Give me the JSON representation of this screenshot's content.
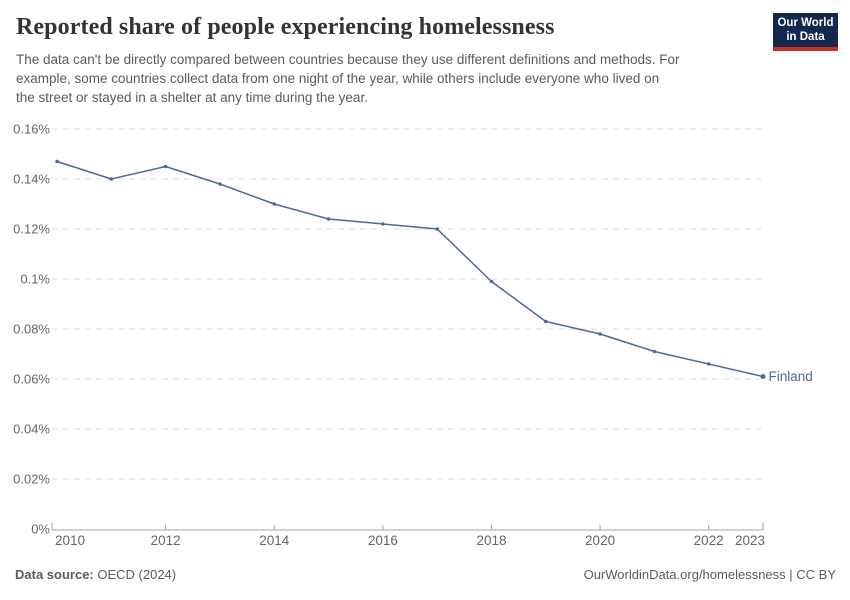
{
  "header": {
    "title": "Reported share of people experiencing homelessness",
    "subtitle": "The data can't be directly compared between countries because they use different definitions and methods. For\nexample, some countries collect data from one night of the year, while others include everyone who lived on\nthe street or stayed in a shelter at any time during the year.",
    "logo": {
      "line1": "Our World",
      "line2": "in Data"
    }
  },
  "chart_data": {
    "type": "line",
    "title": "Reported share of people experiencing homelessness",
    "xlabel": "",
    "ylabel": "",
    "unit": "%",
    "x": [
      2010,
      2011,
      2012,
      2013,
      2014,
      2015,
      2016,
      2017,
      2018,
      2019,
      2020,
      2021,
      2022,
      2023
    ],
    "series": [
      {
        "name": "Finland",
        "values": [
          0.147,
          0.14,
          0.145,
          0.138,
          0.13,
          0.124,
          0.122,
          0.12,
          0.099,
          0.083,
          0.078,
          0.071,
          0.066,
          0.061
        ]
      }
    ],
    "xlim": [
      2010,
      2023
    ],
    "ylim": [
      0,
      0.16
    ],
    "yticks": [
      {
        "value": 0,
        "label": "0%"
      },
      {
        "value": 0.02,
        "label": "0.02%"
      },
      {
        "value": 0.04,
        "label": "0.04%"
      },
      {
        "value": 0.06,
        "label": "0.06%"
      },
      {
        "value": 0.08,
        "label": "0.08%"
      },
      {
        "value": 0.1,
        "label": "0.1%"
      },
      {
        "value": 0.12,
        "label": "0.12%"
      },
      {
        "value": 0.14,
        "label": "0.14%"
      },
      {
        "value": 0.16,
        "label": "0.16%"
      }
    ],
    "xticks": [
      {
        "value": 2010,
        "label": "2010"
      },
      {
        "value": 2012,
        "label": "2012"
      },
      {
        "value": 2014,
        "label": "2014"
      },
      {
        "value": 2016,
        "label": "2016"
      },
      {
        "value": 2018,
        "label": "2018"
      },
      {
        "value": 2020,
        "label": "2020"
      },
      {
        "value": 2022,
        "label": "2022"
      },
      {
        "value": 2023,
        "label": "2023"
      }
    ],
    "grid": "horizontal-dashed",
    "legend": "end-of-line-label"
  },
  "colors": {
    "line": "#4C6A9C",
    "series_label": "#4C6A9C",
    "grid": "#dcdcdc",
    "axis": "#a3a3a3",
    "tick_text": "#666666",
    "title_text": "#333333",
    "subtitle_text": "#5b5b5b",
    "logo_bg": "#12294d",
    "logo_stripe": "#c5302d"
  },
  "footer": {
    "source_label": "Data source:",
    "source_value": " OECD (2024)",
    "link": "OurWorldinData.org/homelessness",
    "separator": " | ",
    "license": "CC BY"
  }
}
